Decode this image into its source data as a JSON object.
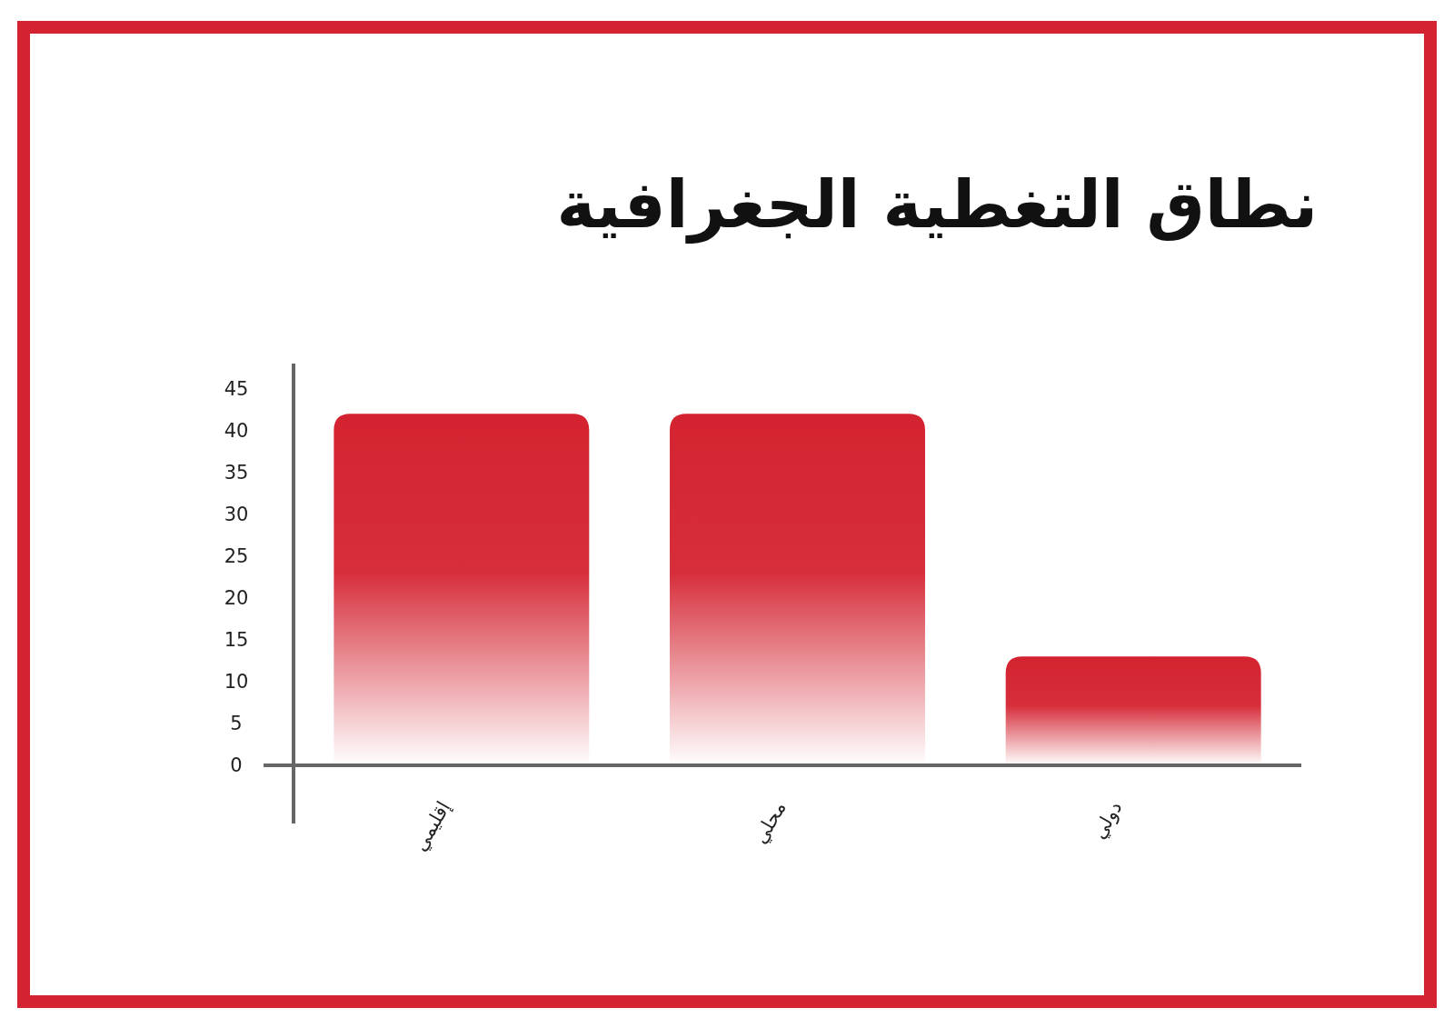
{
  "chart_data": {
    "type": "bar",
    "title": "نطاق التغطية الجغرافية",
    "categories": [
      "إقليمي",
      "محلي",
      "دولي"
    ],
    "values": [
      42,
      42,
      13
    ],
    "color": "#d42330",
    "ylim": [
      0,
      48
    ],
    "yticks": [
      0,
      5,
      10,
      15,
      20,
      25,
      30,
      35,
      40,
      45
    ]
  }
}
